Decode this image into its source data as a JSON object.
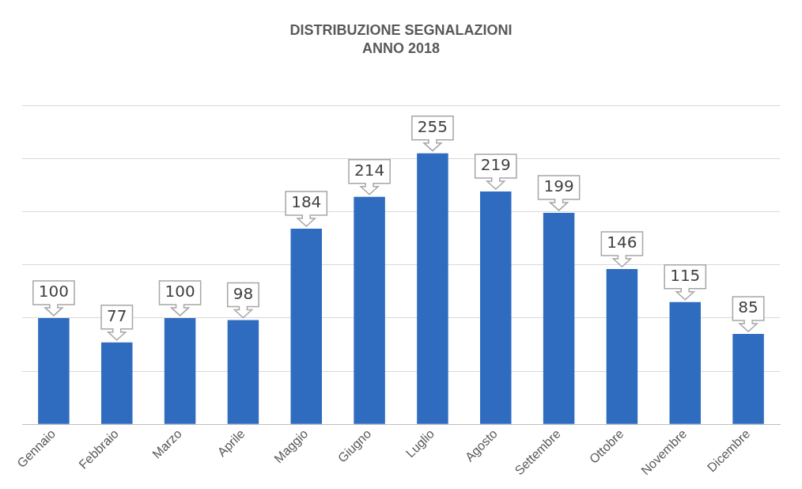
{
  "chart_data": {
    "type": "bar",
    "title": "DISTRIBUZIONE SEGNALAZIONI",
    "subtitle": "ANNO 2018",
    "categories": [
      "Gennaio",
      "Febbraio",
      "Marzo",
      "Aprile",
      "Maggio",
      "Giugno",
      "Luglio",
      "Agosto",
      "Settembre",
      "Ottobre",
      "Novembre",
      "Dicembre"
    ],
    "values": [
      100,
      77,
      100,
      98,
      184,
      214,
      255,
      219,
      199,
      146,
      115,
      85
    ],
    "color": "#2f6cc0",
    "ylim": [
      0,
      300
    ],
    "yticks": [
      {
        "value": 0,
        "label": null
      },
      {
        "value": 50,
        "label": null
      },
      {
        "value": 100,
        "label": null
      },
      {
        "value": 150,
        "label": null
      },
      {
        "value": 200,
        "label": null
      },
      {
        "value": 250,
        "label": null
      },
      {
        "value": 300,
        "label": null
      }
    ],
    "grid": "y",
    "tick_labels": "x",
    "data_labels": true,
    "legend": false
  }
}
